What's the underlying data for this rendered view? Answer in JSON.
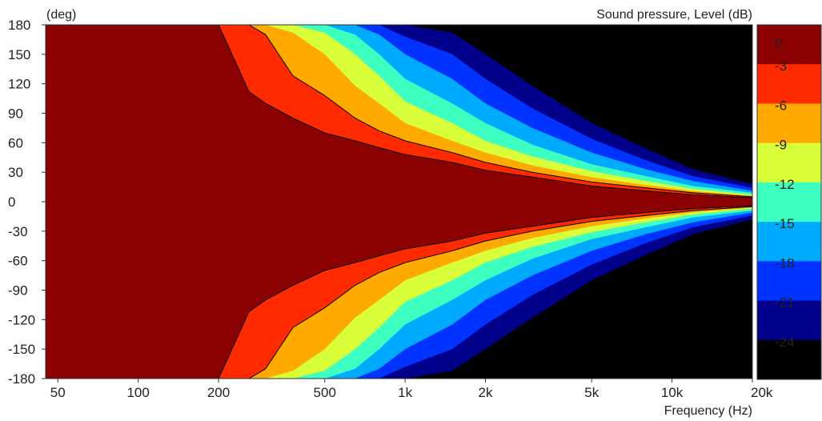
{
  "chart_data": {
    "type": "heatmap",
    "subtype": "polar-directivity-contour",
    "y_unit_label": "(deg)",
    "colorbar_label": "Sound pressure, Level  (dB)",
    "xlabel": "Frequency  (Hz)",
    "x_scale": "log",
    "xlim": [
      45,
      20000
    ],
    "ylim": [
      -180,
      180
    ],
    "x_ticks": [
      {
        "value": 50,
        "label": "50"
      },
      {
        "value": 100,
        "label": "100"
      },
      {
        "value": 200,
        "label": "200"
      },
      {
        "value": 500,
        "label": "500"
      },
      {
        "value": 1000,
        "label": "1k"
      },
      {
        "value": 2000,
        "label": "2k"
      },
      {
        "value": 5000,
        "label": "5k"
      },
      {
        "value": 10000,
        "label": "10k"
      },
      {
        "value": 20000,
        "label": "20k"
      }
    ],
    "y_ticks": [
      {
        "value": 180,
        "label": "180"
      },
      {
        "value": 150,
        "label": "150"
      },
      {
        "value": 120,
        "label": "120"
      },
      {
        "value": 90,
        "label": "90"
      },
      {
        "value": 60,
        "label": "60"
      },
      {
        "value": 30,
        "label": "30"
      },
      {
        "value": 0,
        "label": "0"
      },
      {
        "value": -30,
        "label": "-30"
      },
      {
        "value": -60,
        "label": "-60"
      },
      {
        "value": -90,
        "label": "-90"
      },
      {
        "value": -120,
        "label": "-120"
      },
      {
        "value": -150,
        "label": "-150"
      },
      {
        "value": -180,
        "label": "-180"
      }
    ],
    "levels": [
      {
        "label": "0",
        "min": -3,
        "color": "#8b0000"
      },
      {
        "label": "-3",
        "min": -6,
        "color": "#ff2a00"
      },
      {
        "label": "-6",
        "min": -9,
        "color": "#ffaa00"
      },
      {
        "label": "-9",
        "min": -12,
        "color": "#d8ff3a"
      },
      {
        "label": "-12",
        "min": -15,
        "color": "#3cffc0"
      },
      {
        "label": "-15",
        "min": -18,
        "color": "#00aaff"
      },
      {
        "label": "-18",
        "min": -21,
        "color": "#0033ff"
      },
      {
        "label": "-21",
        "min": -24,
        "color": "#00008b"
      },
      {
        "label": "-24",
        "min": -999,
        "color": "#000000"
      }
    ],
    "beamwidth_contours": {
      "frequency_hz": [
        45,
        150,
        200,
        260,
        300,
        380,
        500,
        650,
        800,
        1000,
        1500,
        2000,
        3000,
        5000,
        8000,
        12000,
        20000
      ],
      "angle_-3dB_deg": [
        180,
        180,
        180,
        112,
        100,
        85,
        70,
        62,
        55,
        48,
        40,
        32,
        25,
        16,
        11,
        7,
        4
      ],
      "angle_-6dB_deg": [
        180,
        180,
        180,
        180,
        170,
        128,
        108,
        85,
        72,
        62,
        50,
        40,
        30,
        20,
        14,
        9,
        5
      ],
      "angle_-9dB_deg": [
        180,
        180,
        180,
        180,
        180,
        172,
        150,
        118,
        100,
        80,
        62,
        50,
        37,
        25,
        17,
        11,
        6
      ],
      "angle_-12dB_deg": [
        180,
        180,
        180,
        180,
        180,
        180,
        172,
        150,
        128,
        102,
        80,
        62,
        46,
        31,
        21,
        13,
        7
      ],
      "angle_-15dB_deg": [
        180,
        180,
        180,
        180,
        180,
        180,
        180,
        170,
        150,
        125,
        100,
        80,
        58,
        38,
        26,
        16,
        9
      ],
      "angle_-18dB_deg": [
        180,
        180,
        180,
        180,
        180,
        180,
        180,
        180,
        170,
        150,
        125,
        100,
        75,
        50,
        33,
        21,
        11
      ],
      "angle_-21dB_deg": [
        180,
        180,
        180,
        180,
        180,
        180,
        180,
        180,
        180,
        168,
        150,
        125,
        95,
        64,
        42,
        26,
        14
      ],
      "angle_-24dB_deg": [
        180,
        180,
        180,
        180,
        180,
        180,
        180,
        180,
        180,
        180,
        172,
        150,
        118,
        80,
        54,
        33,
        18
      ]
    },
    "grid": false,
    "legend": "colorbar-right"
  }
}
